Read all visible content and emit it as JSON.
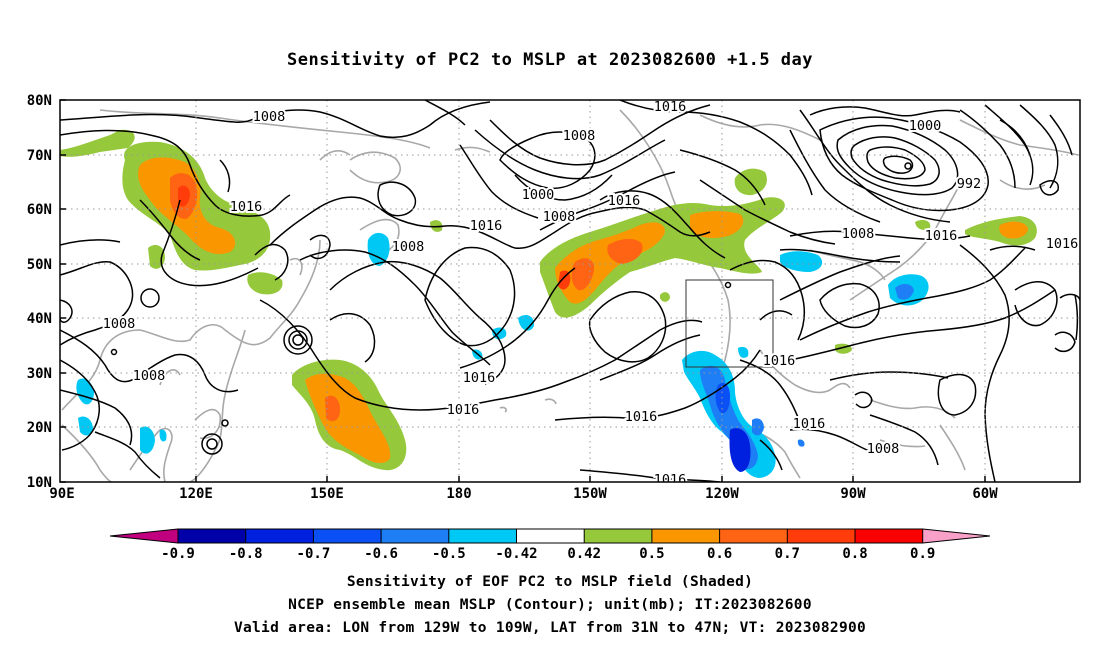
{
  "title": "Sensitivity of PC2 to MSLP at 2023082600 +1.5 day",
  "axes": {
    "lat_labels": [
      "80N",
      "70N",
      "60N",
      "50N",
      "40N",
      "30N",
      "20N",
      "10N"
    ],
    "lon_labels": [
      "90E",
      "120E",
      "150E",
      "180",
      "150W",
      "120W",
      "90W",
      "60W"
    ]
  },
  "contour_labels": [
    "1008",
    "1016",
    "1016",
    "1008",
    "1016",
    "1000",
    "1008",
    "1008",
    "1016",
    "1016",
    "1016",
    "1008",
    "1008",
    "1016",
    "1016",
    "1016",
    "1016",
    "1016",
    "1000",
    "992",
    "1008",
    "1016",
    "1008"
  ],
  "colorbar": {
    "tick_labels": [
      "-0.9",
      "-0.8",
      "-0.7",
      "-0.6",
      "-0.5",
      "-0.42",
      "0.42",
      "0.5",
      "0.6",
      "0.7",
      "0.8",
      "0.9"
    ],
    "colors": [
      "#c0007f",
      "#0000a8",
      "#0020e0",
      "#0a50f5",
      "#1e7ef6",
      "#00c8f5",
      "#ffffff",
      "#96c83c",
      "#fa9600",
      "#ff6414",
      "#ff3c0a",
      "#fa0000",
      "#f8a0c8"
    ]
  },
  "shading_colors": {
    "green": "#96c83c",
    "orange": "#fa9600",
    "dark_orange": "#ff6414",
    "red": "#ff3c0a",
    "light_blue": "#00c8f5",
    "blue": "#1e7ef6",
    "dark_blue": "#0020e0"
  },
  "valid_box": {
    "lon_min_w": 129,
    "lon_max_w": 109,
    "lat_min": 31,
    "lat_max": 47
  },
  "captions": [
    "Sensitivity of EOF PC2 to MSLP field (Shaded)",
    "NCEP ensemble mean MSLP (Contour); unit(mb); IT:2023082600",
    "Valid area: LON from 129W to 109W, LAT from 31N to 47N; VT: 2023082900"
  ]
}
